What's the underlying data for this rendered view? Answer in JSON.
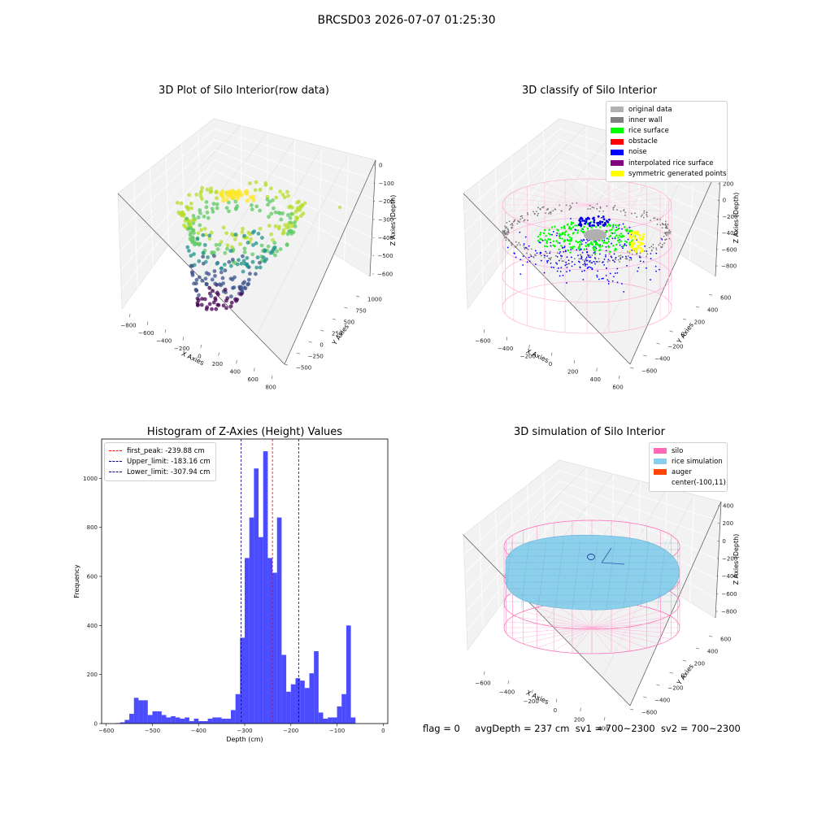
{
  "figure": {
    "suptitle": "BRCSD03 2026-07-07 01:25:30",
    "footer": {
      "flag": "flag = 0",
      "avg_depth": "avgDepth = 237 cm",
      "sv1": "sv1 = 700~2300",
      "sv2": "sv2 = 700~2300"
    }
  },
  "chart_data": [
    {
      "type": "scatter3d",
      "title": "3D Plot of Silo Interior(row data)",
      "xlabel": "X Axies",
      "ylabel": "Y Axies",
      "zlabel": "Z Axies (Depth)",
      "xticks": [
        "−800",
        "−600",
        "−400",
        "−200",
        "0",
        "200",
        "400",
        "600",
        "800"
      ],
      "yticks": [
        "−500",
        "−250",
        "0",
        "250",
        "500",
        "750",
        "1000"
      ],
      "zticks": [
        "0",
        "−100",
        "−200",
        "−300",
        "−400",
        "−500",
        "−600"
      ],
      "zlim": [
        -600,
        0
      ],
      "colormap": "viridis"
    },
    {
      "type": "scatter3d",
      "title": "3D classify of Silo Interior",
      "xlabel": "X Axies",
      "ylabel": "Y Axies",
      "zlabel": "Z Axies (Depth)",
      "xticks": [
        "−600",
        "−400",
        "−200",
        "0",
        "200",
        "400",
        "600"
      ],
      "yticks": [
        "−600",
        "−400",
        "−200",
        "0",
        "200",
        "400",
        "600"
      ],
      "zticks": [
        "200",
        "0",
        "−200",
        "−400",
        "−600",
        "−800"
      ],
      "legend": [
        {
          "label": "original data",
          "color": "#b0b0b0"
        },
        {
          "label": "inner wall",
          "color": "#808080"
        },
        {
          "label": "rice surface",
          "color": "#00ff00"
        },
        {
          "label": "obstacle",
          "color": "#ff0000"
        },
        {
          "label": "noise",
          "color": "#0000ff"
        },
        {
          "label": "interpolated rice surface",
          "color": "#800080"
        },
        {
          "label": "symmetric generated points",
          "color": "#ffff00"
        }
      ]
    },
    {
      "type": "bar",
      "title": "Histogram of Z-Axies (Height) Values",
      "xlabel": "Depth (cm)",
      "ylabel": "Frequency",
      "xlim": [
        -610,
        10
      ],
      "ylim": [
        0,
        1160
      ],
      "xticks": [
        "−600",
        "−500",
        "−400",
        "−300",
        "−200",
        "−100",
        "0"
      ],
      "yticks": [
        "0",
        "200",
        "400",
        "600",
        "800",
        "1000"
      ],
      "bin_width": 10,
      "bin_starts": [
        -580,
        -570,
        -560,
        -550,
        -540,
        -530,
        -520,
        -510,
        -500,
        -490,
        -480,
        -470,
        -460,
        -450,
        -440,
        -430,
        -420,
        -410,
        -400,
        -390,
        -380,
        -370,
        -360,
        -350,
        -340,
        -330,
        -320,
        -310,
        -300,
        -290,
        -280,
        -270,
        -260,
        -250,
        -240,
        -230,
        -220,
        -210,
        -200,
        -190,
        -180,
        -170,
        -160,
        -150,
        -140,
        -130,
        -120,
        -110,
        -100,
        -90,
        -80,
        -70,
        -60,
        -50,
        -40,
        -30,
        -20
      ],
      "values": [
        2,
        5,
        15,
        40,
        105,
        95,
        95,
        35,
        50,
        50,
        35,
        25,
        30,
        25,
        20,
        25,
        10,
        20,
        10,
        10,
        20,
        25,
        25,
        20,
        20,
        55,
        120,
        350,
        675,
        840,
        1040,
        760,
        1110,
        675,
        615,
        840,
        280,
        130,
        160,
        185,
        175,
        145,
        205,
        295,
        45,
        20,
        25,
        25,
        70,
        120,
        400,
        25,
        0,
        0,
        0,
        0,
        0
      ],
      "series_color": "#0000ff",
      "vlines": [
        {
          "label": "first_peak: -239.88 cm",
          "x": -239.88,
          "color": "#ff0000"
        },
        {
          "label": "Upper_limit: -183.16 cm",
          "x": -183.16,
          "color": "#00008b"
        },
        {
          "label": "Lower_limit: -307.94 cm",
          "x": -307.94,
          "color": "#00008b"
        }
      ]
    },
    {
      "type": "surface3d",
      "title": "3D simulation of Silo Interior",
      "xlabel": "X Axies",
      "ylabel": "Y Axies",
      "zlabel": "Z Axies (Depth)",
      "xticks": [
        "−600",
        "−400",
        "−200",
        "0",
        "200",
        "400"
      ],
      "yticks": [
        "−600",
        "−400",
        "−200",
        "0",
        "200",
        "400",
        "600"
      ],
      "zticks": [
        "400",
        "200",
        "0",
        "−200",
        "−400",
        "−600",
        "−800"
      ],
      "legend": [
        {
          "label": "silo",
          "color": "#ff69b4"
        },
        {
          "label": "rice simulation",
          "color": "#87ceeb"
        },
        {
          "label": "auger",
          "color": "#ff4500"
        },
        {
          "label": "center(-100,11)",
          "color": ""
        }
      ]
    }
  ]
}
